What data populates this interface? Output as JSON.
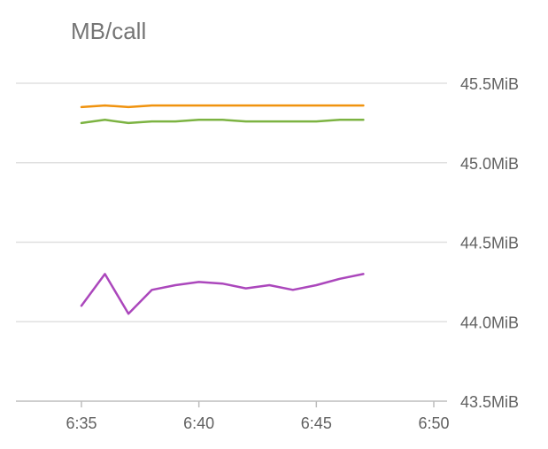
{
  "chart_data": {
    "type": "line",
    "title": "MB/call",
    "xlabel": "",
    "ylabel": "",
    "x_ticks": [
      "6:35",
      "6:40",
      "6:45",
      "6:50"
    ],
    "x_tick_minutes": [
      35,
      40,
      45,
      50
    ],
    "xlim_minutes": [
      32.4,
      50
    ],
    "y_ticks": [
      "45.5MiB",
      "45.0MiB",
      "44.5MiB",
      "44.0MiB",
      "43.5MiB"
    ],
    "y_tick_values": [
      45.5,
      45.0,
      44.5,
      44.0,
      43.5
    ],
    "ylim": [
      43.5,
      45.5
    ],
    "grid": true,
    "legend": "none",
    "x_minutes": [
      35,
      36,
      37,
      38,
      39,
      40,
      41,
      42,
      43,
      44,
      45,
      46,
      47
    ],
    "series": [
      {
        "color": "#f0930f",
        "values": [
          45.35,
          45.36,
          45.35,
          45.36,
          45.36,
          45.36,
          45.36,
          45.36,
          45.36,
          45.36,
          45.36,
          45.36,
          45.36
        ]
      },
      {
        "color": "#7cb342",
        "values": [
          45.25,
          45.27,
          45.25,
          45.26,
          45.26,
          45.27,
          45.27,
          45.26,
          45.26,
          45.26,
          45.26,
          45.27,
          45.27
        ]
      },
      {
        "color": "#ab47bc",
        "values": [
          44.1,
          44.3,
          44.05,
          44.2,
          44.23,
          44.25,
          44.24,
          44.21,
          44.23,
          44.2,
          44.23,
          44.27,
          44.3
        ]
      }
    ]
  }
}
